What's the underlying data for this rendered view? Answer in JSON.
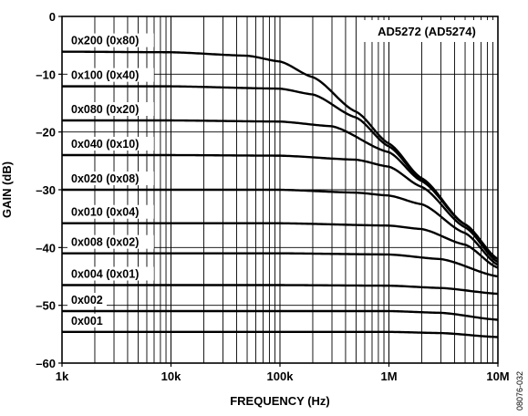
{
  "chart_data": {
    "type": "line",
    "xlabel": "FREQUENCY (Hz)",
    "ylabel": "GAIN (dB)",
    "x_scale": "log",
    "xlim": [
      1000,
      10000000
    ],
    "ylim": [
      -60,
      0
    ],
    "grid": true,
    "x_tick_values": [
      1000,
      10000,
      100000,
      1000000,
      10000000
    ],
    "x_tick_labels": [
      "1k",
      "10k",
      "100k",
      "1M",
      "10M"
    ],
    "y_tick_values": [
      0,
      -10,
      -20,
      -30,
      -40,
      -50,
      -60
    ],
    "y_tick_labels": [
      "0",
      "–10",
      "–20",
      "–30",
      "–40",
      "–50",
      "–60"
    ],
    "annotation": "AD5272 (AD5274)",
    "figure_id": "08076-032",
    "series": [
      {
        "name": "0x200 (0x80)",
        "x": [
          1000,
          10000,
          50000,
          100000,
          200000,
          500000,
          1000000,
          2000000,
          5000000,
          10000000
        ],
        "y": [
          -6.1,
          -6.2,
          -6.8,
          -7.8,
          -10.5,
          -16.5,
          -22.0,
          -28.0,
          -36.0,
          -42.0
        ]
      },
      {
        "name": "0x100 (0x40)",
        "x": [
          1000,
          10000,
          100000,
          200000,
          500000,
          1000000,
          2000000,
          5000000,
          10000000
        ],
        "y": [
          -12.1,
          -12.1,
          -12.5,
          -13.5,
          -17.5,
          -22.5,
          -28.2,
          -36.0,
          -42.0
        ]
      },
      {
        "name": "0x080 (0x20)",
        "x": [
          1000,
          10000,
          100000,
          300000,
          1000000,
          2000000,
          5000000,
          10000000
        ],
        "y": [
          -18.0,
          -18.0,
          -18.2,
          -19.0,
          -23.5,
          -28.5,
          -36.0,
          -42.0
        ]
      },
      {
        "name": "0x040 (0x10)",
        "x": [
          1000,
          10000,
          100000,
          500000,
          1000000,
          2000000,
          5000000,
          10000000
        ],
        "y": [
          -24.0,
          -24.0,
          -24.1,
          -24.8,
          -26.0,
          -29.5,
          -36.5,
          -42.5
        ]
      },
      {
        "name": "0x020 (0x08)",
        "x": [
          1000,
          10000,
          100000,
          500000,
          1000000,
          2000000,
          5000000,
          10000000
        ],
        "y": [
          -30.0,
          -30.0,
          -30.0,
          -30.5,
          -31.0,
          -32.5,
          -37.5,
          -43.0
        ]
      },
      {
        "name": "0x010 (0x04)",
        "x": [
          1000,
          10000,
          100000,
          1000000,
          2000000,
          5000000,
          10000000
        ],
        "y": [
          -35.8,
          -35.8,
          -35.8,
          -36.2,
          -36.8,
          -39.5,
          -43.5
        ]
      },
      {
        "name": "0x008 (0x02)",
        "x": [
          1000,
          10000,
          100000,
          1000000,
          3000000,
          10000000
        ],
        "y": [
          -41.0,
          -41.0,
          -41.0,
          -41.2,
          -42.0,
          -45.0
        ]
      },
      {
        "name": "0x004 (0x01)",
        "x": [
          1000,
          10000,
          100000,
          1000000,
          3000000,
          10000000
        ],
        "y": [
          -46.5,
          -46.5,
          -46.5,
          -46.6,
          -47.0,
          -48.0
        ]
      },
      {
        "name": "0x002",
        "x": [
          1000,
          10000,
          100000,
          1000000,
          3000000,
          10000000
        ],
        "y": [
          -51.0,
          -51.0,
          -51.0,
          -51.0,
          -51.3,
          -52.5
        ]
      },
      {
        "name": "0x001",
        "x": [
          1000,
          10000,
          100000,
          1000000,
          3000000,
          10000000
        ],
        "y": [
          -54.6,
          -54.6,
          -54.6,
          -54.6,
          -54.8,
          -55.5
        ]
      }
    ]
  }
}
